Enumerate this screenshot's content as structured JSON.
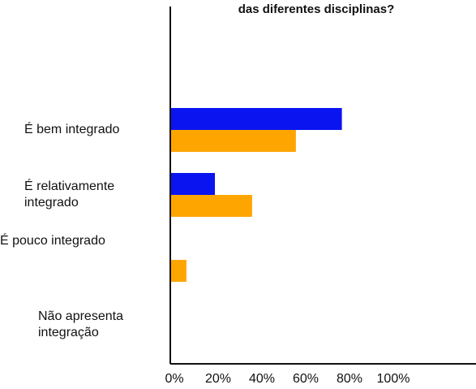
{
  "chart_data": {
    "type": "bar",
    "orientation": "horizontal",
    "title": "das diferentes disciplinas?",
    "categories": [
      "É bem integrado",
      "É relativamente integrado",
      "É pouco integrado",
      "Não apresenta integração"
    ],
    "series": [
      {
        "color": "#0a14f0",
        "values": [
          78,
          20,
          0,
          0
        ]
      },
      {
        "color": "#ffa500",
        "values": [
          57,
          37,
          7,
          0
        ]
      }
    ],
    "xlim": [
      0,
      100
    ],
    "xticks": [
      {
        "value": 0,
        "label": "0%"
      },
      {
        "value": 20,
        "label": "20%"
      },
      {
        "value": 40,
        "label": "40%"
      },
      {
        "value": 60,
        "label": "60%"
      },
      {
        "value": 80,
        "label": "80%"
      },
      {
        "value": 100,
        "label": "100%"
      }
    ]
  }
}
